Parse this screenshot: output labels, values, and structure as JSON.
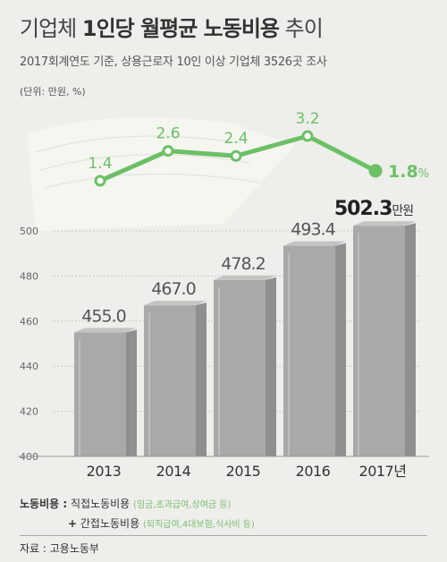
{
  "title_part1": "기업체 ",
  "title_bold": "1인당 월평균 노동비용",
  "title_part2": " 추이",
  "subtitle": "2017회계연도 기준, 상용근로자 10인 이상 기업체 3526곳 조사",
  "unit": "(단위: 만원, %)",
  "legend": {
    "label": "노동비용 :",
    "direct": "직접노동비용",
    "direct_note": "(임금,초과급여,상여금 등)",
    "plus": "+",
    "indirect": "간접노동비용",
    "indirect_note": "(퇴직급여,4대보험,식사비 등)"
  },
  "source": "자료 : 고용노동부",
  "colors": {
    "line": "#6cc066",
    "bar_front": "#a9a9a7",
    "bar_side": "#8f8f8d",
    "bar_top": "#c4c4c2"
  },
  "chart_data": [
    {
      "type": "bar",
      "categories": [
        "2013",
        "2014",
        "2015",
        "2016",
        "2017년"
      ],
      "values": [
        455.0,
        467.0,
        478.2,
        493.4,
        502.3
      ],
      "value_labels": [
        "455.0",
        "467.0",
        "478.2",
        "493.4",
        "502.3"
      ],
      "last_label_suffix": "만원",
      "ylim": [
        400,
        500
      ],
      "yticks": [
        "400",
        "420",
        "440",
        "460",
        "480",
        "500"
      ],
      "grid": true
    },
    {
      "type": "line",
      "categories": [
        "2013",
        "2014",
        "2015",
        "2016",
        "2017년"
      ],
      "values": [
        1.4,
        2.6,
        2.4,
        3.2,
        1.8
      ],
      "value_labels": [
        "1.4",
        "2.6",
        "2.4",
        "3.2",
        "1.8"
      ],
      "last_label_suffix": "%"
    }
  ]
}
